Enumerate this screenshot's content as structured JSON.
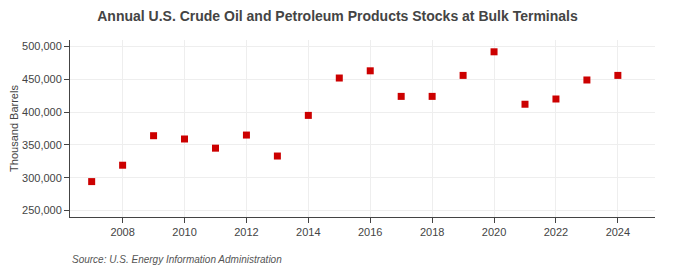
{
  "chart_data": {
    "type": "scatter",
    "title": "Annual U.S. Crude Oil and Petroleum Products Stocks at Bulk Terminals",
    "ylabel": "Thousand Barrels",
    "source": "Source: U.S. Energy Information Administration",
    "x": [
      2007,
      2008,
      2009,
      2010,
      2011,
      2012,
      2013,
      2014,
      2015,
      2016,
      2017,
      2018,
      2019,
      2020,
      2021,
      2022,
      2023,
      2024
    ],
    "values": [
      294000,
      319000,
      364000,
      359000,
      345000,
      365000,
      333000,
      395000,
      452000,
      463000,
      424000,
      424000,
      456000,
      492000,
      412000,
      420000,
      449000,
      456000
    ],
    "color": "#cc0000",
    "marker": "square",
    "xlim": [
      2006.3,
      2025.2
    ],
    "xticks": [
      2008,
      2010,
      2012,
      2014,
      2016,
      2018,
      2020,
      2022,
      2024
    ],
    "ylim": [
      240000,
      510000
    ],
    "yticks": [
      {
        "value": 250000,
        "label": "250,000"
      },
      {
        "value": 300000,
        "label": "300,000"
      },
      {
        "value": 350000,
        "label": "350,000"
      },
      {
        "value": 400000,
        "label": "400,000"
      },
      {
        "value": 450000,
        "label": "450,000"
      },
      {
        "value": 500000,
        "label": "500,000"
      }
    ],
    "grid": true
  }
}
